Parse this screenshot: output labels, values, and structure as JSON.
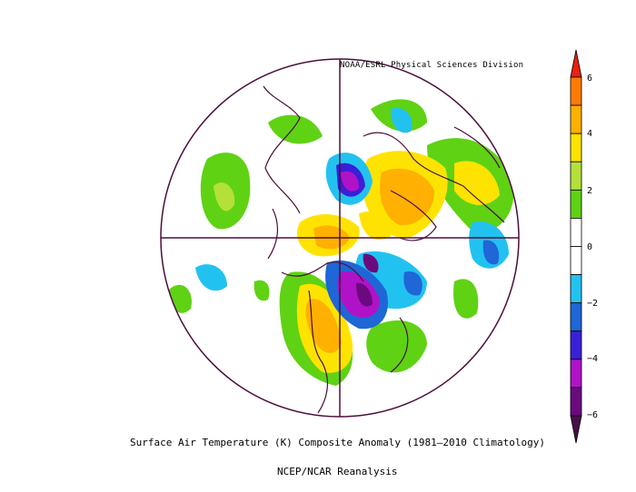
{
  "credit": "NOAA/ESRL Physical Sciences Division",
  "caption": {
    "main": "Surface Air Temperature (K) Composite Anomaly (1981–2010 Climatology)",
    "sub": "NCEP/NCAR Reanalysis"
  },
  "colorbar": {
    "ticks": [
      "6",
      "4",
      "2",
      "0",
      "−2",
      "−4",
      "−6"
    ],
    "colors": [
      "#e8220c",
      "#ff7a00",
      "#ffb000",
      "#ffe300",
      "#b4e03a",
      "#5fd214",
      "#ffffff",
      "#ffffff",
      "#22c2f0",
      "#1f66d6",
      "#3a1fd8",
      "#b012c8",
      "#6b0a7e",
      "#4a0e4a"
    ]
  }
}
